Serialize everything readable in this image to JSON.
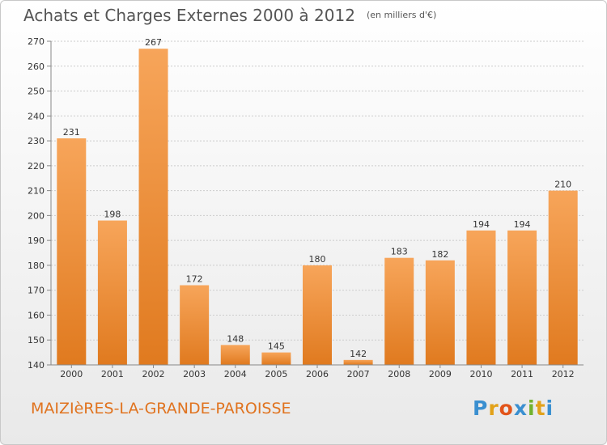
{
  "header": {
    "title": "Achats et Charges Externes 2000 à 2012",
    "unit": "(en milliers d'€)"
  },
  "footer": {
    "commune": "MAIZIèRES-LA-GRANDE-PAROISSE",
    "logo_letters": [
      "P",
      "r",
      "o",
      "x",
      "i",
      "t",
      "i"
    ]
  },
  "colors": {
    "bar_top": "#f7a55a",
    "bar_bottom": "#e07a1f",
    "commune_text": "#e0731f",
    "grid": "#cccccc",
    "logo_letters": [
      "#3a8fd0",
      "#e2a21a",
      "#e2541a",
      "#3a8fd0",
      "#71b22d",
      "#e2a21a",
      "#3a8fd0"
    ]
  },
  "chart_data": {
    "type": "bar",
    "title": "Achats et Charges Externes 2000 à 2012",
    "subtitle": "(en milliers d'€)",
    "xlabel": "",
    "ylabel": "",
    "categories": [
      "2000",
      "2001",
      "2002",
      "2003",
      "2004",
      "2005",
      "2006",
      "2007",
      "2008",
      "2009",
      "2010",
      "2011",
      "2012"
    ],
    "values": [
      231,
      198,
      267,
      172,
      148,
      145,
      180,
      142,
      183,
      182,
      194,
      194,
      210
    ],
    "ylim": [
      140,
      270
    ],
    "yticks": [
      140,
      150,
      160,
      170,
      180,
      190,
      200,
      210,
      220,
      230,
      240,
      250,
      260,
      270
    ],
    "grid": true,
    "legend": "none"
  }
}
